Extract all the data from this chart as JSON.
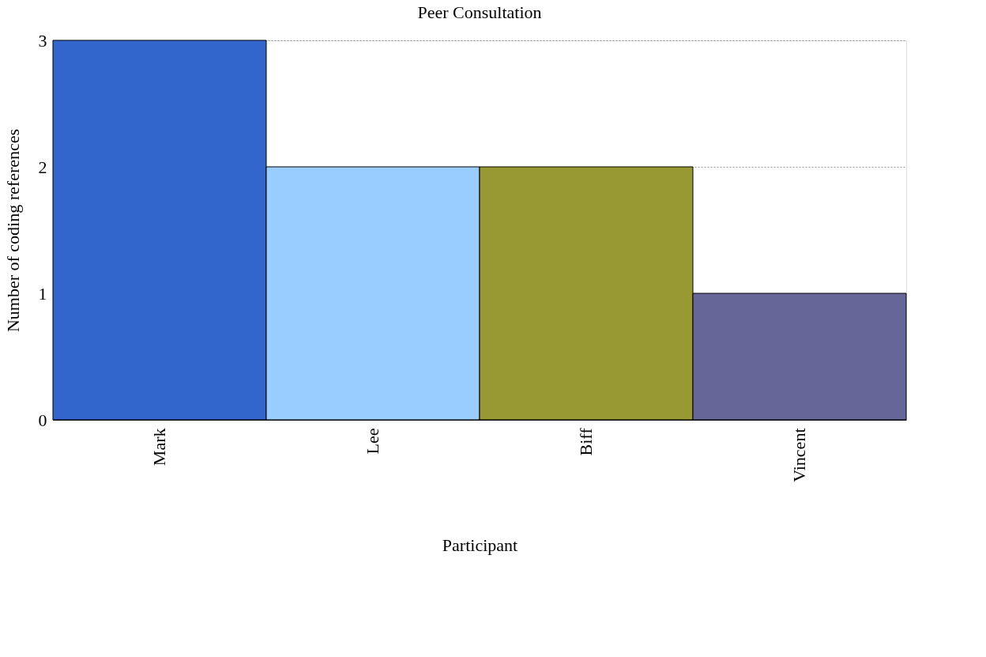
{
  "chart_data": {
    "type": "bar",
    "title": "Peer Consultation",
    "xlabel": "Participant",
    "ylabel": "Number of coding references",
    "categories": [
      "Mark",
      "Lee",
      "Biff",
      "Vincent"
    ],
    "values": [
      3,
      2,
      2,
      1
    ],
    "colors": [
      "#3366cc",
      "#99ccff",
      "#999933",
      "#666699"
    ],
    "ylim": [
      0,
      3
    ],
    "yticks": [
      0,
      1,
      2,
      3
    ],
    "grid": "y"
  }
}
